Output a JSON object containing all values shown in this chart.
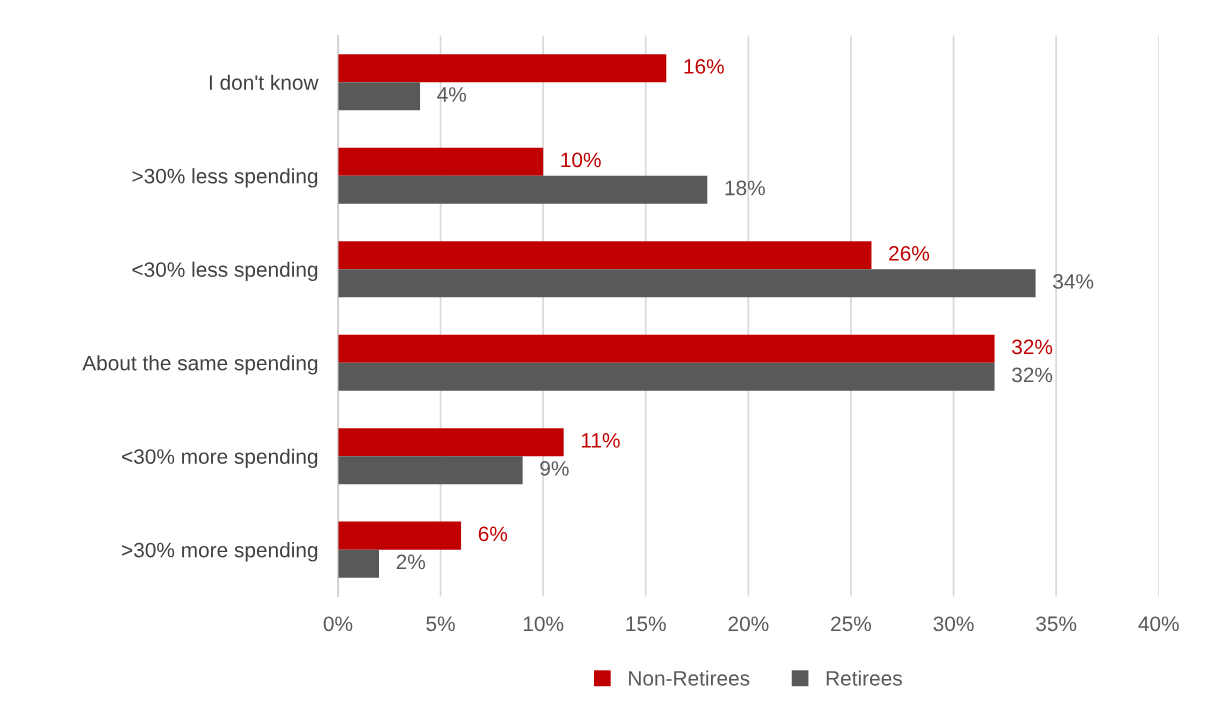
{
  "chart_data": {
    "type": "bar",
    "orientation": "horizontal",
    "categories": [
      "I don't know",
      ">30% less spending",
      "<30% less spending",
      "About the same spending",
      "<30% more spending",
      ">30% more spending"
    ],
    "series": [
      {
        "name": "Non-Retirees",
        "color": "#c00000",
        "values": [
          16,
          10,
          26,
          32,
          11,
          6
        ],
        "value_labels": [
          "16%",
          "10%",
          "26%",
          "32%",
          "11%",
          "6%"
        ]
      },
      {
        "name": "Retirees",
        "color": "#595959",
        "values": [
          4,
          18,
          34,
          32,
          9,
          2
        ],
        "value_labels": [
          "4%",
          "18%",
          "34%",
          "32%",
          "9%",
          "2%"
        ]
      }
    ],
    "xlim": [
      0,
      40
    ],
    "xticks": [
      {
        "value": 0,
        "label": "0%"
      },
      {
        "value": 5,
        "label": "5%"
      },
      {
        "value": 10,
        "label": "10%"
      },
      {
        "value": 15,
        "label": "15%"
      },
      {
        "value": 20,
        "label": "20%"
      },
      {
        "value": 25,
        "label": "25%"
      },
      {
        "value": 30,
        "label": "30%"
      },
      {
        "value": 35,
        "label": "35%"
      },
      {
        "value": 40,
        "label": "40%"
      }
    ],
    "grid": "x",
    "legend": "bottom"
  }
}
